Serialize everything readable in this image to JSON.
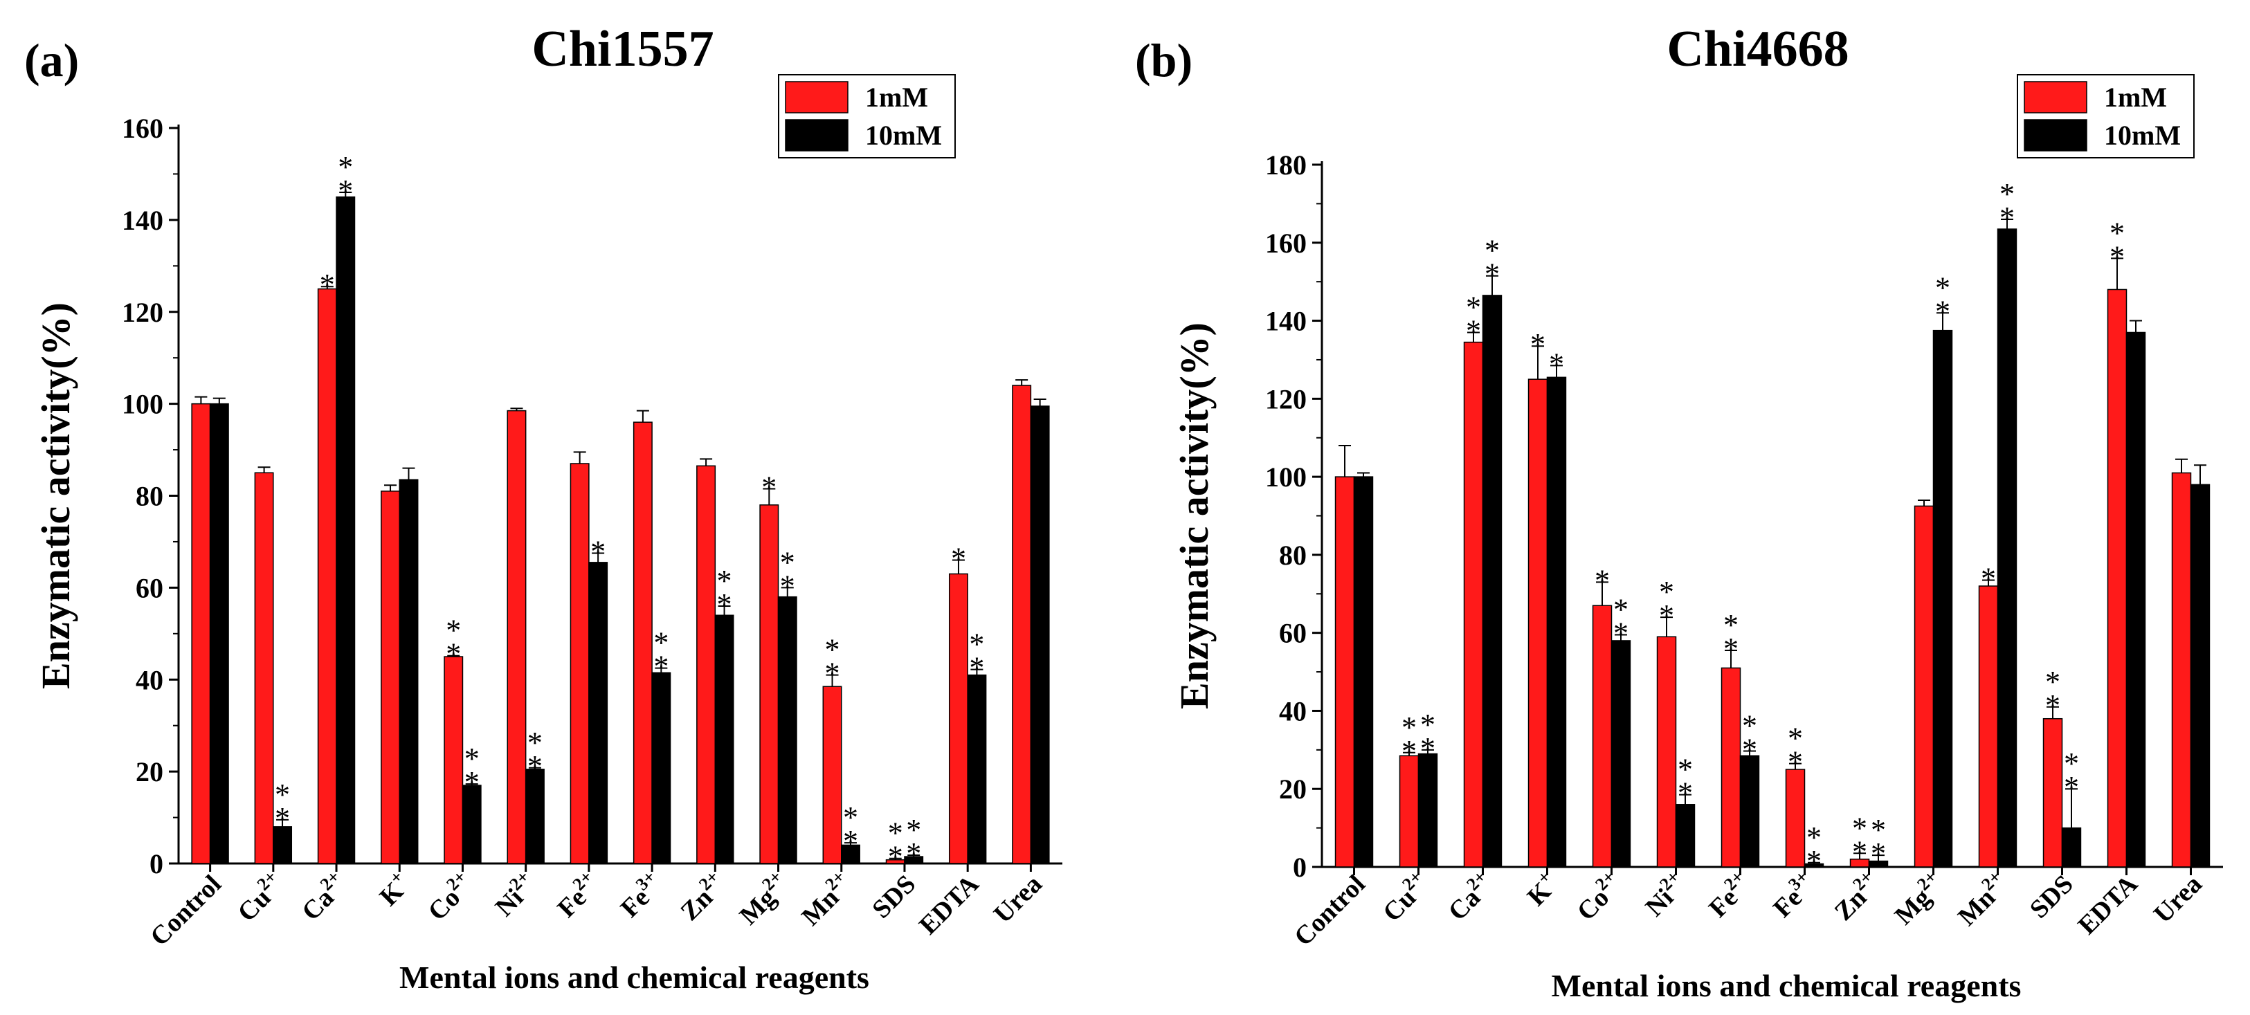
{
  "colors": {
    "c1mM": "#ff1a1a",
    "c10mM": "#000000"
  },
  "chart_data": [
    {
      "type": "bar",
      "panel_label": "(a)",
      "title": "Chi1557",
      "xlabel": "Mental ions and chemical reagents",
      "ylabel": "Enzymatic activity(%)",
      "ylim": [
        0,
        160
      ],
      "yticks": [
        "0",
        "20",
        "40",
        "60",
        "80",
        "100",
        "120",
        "140",
        "160"
      ],
      "legend_position": "top-right",
      "categories": [
        {
          "base": "Control",
          "sup": ""
        },
        {
          "base": "Cu",
          "sup": "2+"
        },
        {
          "base": "Ca",
          "sup": "2+"
        },
        {
          "base": "K",
          "sup": "+"
        },
        {
          "base": "Co",
          "sup": "2+"
        },
        {
          "base": "Ni",
          "sup": "2+"
        },
        {
          "base": "Fe",
          "sup": "2+"
        },
        {
          "base": "Fe",
          "sup": "3+"
        },
        {
          "base": "Zn",
          "sup": "2+"
        },
        {
          "base": "Mg",
          "sup": "2+"
        },
        {
          "base": "Mn",
          "sup": "2+"
        },
        {
          "base": "SDS",
          "sup": ""
        },
        {
          "base": "EDTA",
          "sup": ""
        },
        {
          "base": "Urea",
          "sup": ""
        }
      ],
      "series": [
        {
          "name": "1mM",
          "values": [
            100,
            85,
            125,
            81,
            45,
            98.5,
            87,
            96,
            86.5,
            78,
            38.5,
            0.8,
            63,
            104
          ],
          "errors": [
            1.5,
            1.2,
            0.5,
            1.3,
            0.2,
            0.5,
            2.5,
            2.5,
            1.5,
            3.5,
            2.5,
            0.3,
            3,
            1.2
          ],
          "sig": [
            "",
            "",
            "*",
            "",
            "**",
            "",
            "",
            "",
            "",
            "*",
            "**",
            "**",
            "*",
            ""
          ]
        },
        {
          "name": "10mM",
          "values": [
            100,
            8,
            145,
            83.5,
            17,
            20.5,
            65.5,
            41.5,
            54,
            58,
            4,
            1.5,
            41,
            99.5
          ],
          "errors": [
            1.2,
            1.5,
            1.0,
            2.5,
            0.3,
            0.3,
            2.0,
            1.0,
            2.0,
            2.0,
            0.5,
            0.3,
            1.2,
            1.5
          ],
          "sig": [
            "",
            "**",
            "**",
            "",
            "**",
            "**",
            "*",
            "**",
            "**",
            "**",
            "**",
            "**",
            "**",
            ""
          ]
        }
      ]
    },
    {
      "type": "bar",
      "panel_label": "(b)",
      "title": "Chi4668",
      "xlabel": "Mental ions and chemical reagents",
      "ylabel": "Enzymatic activity(%)",
      "ylim": [
        0,
        180
      ],
      "yticks": [
        "0",
        "20",
        "40",
        "60",
        "80",
        "100",
        "120",
        "140",
        "160",
        "180"
      ],
      "legend_position": "top-right",
      "categories": [
        {
          "base": "Control",
          "sup": ""
        },
        {
          "base": "Cu",
          "sup": "2+"
        },
        {
          "base": "Ca",
          "sup": "2+"
        },
        {
          "base": "K",
          "sup": "+"
        },
        {
          "base": "Co",
          "sup": "2+"
        },
        {
          "base": "Ni",
          "sup": "2+"
        },
        {
          "base": "Fe",
          "sup": "2+"
        },
        {
          "base": "Fe",
          "sup": "3+"
        },
        {
          "base": "Zn",
          "sup": "2+"
        },
        {
          "base": "Mg",
          "sup": "2+"
        },
        {
          "base": "Mn",
          "sup": "2+"
        },
        {
          "base": "SDS",
          "sup": ""
        },
        {
          "base": "EDTA",
          "sup": ""
        },
        {
          "base": "Urea",
          "sup": ""
        }
      ],
      "series": [
        {
          "name": "1mM",
          "values": [
            100,
            28.5,
            134.5,
            125,
            67,
            59,
            51,
            25,
            2,
            92.5,
            72,
            38,
            148,
            101
          ],
          "errors": [
            8,
            0.8,
            2.5,
            8.5,
            6,
            5,
            4.5,
            1.5,
            1.5,
            1.5,
            1.5,
            3,
            8,
            3.5
          ],
          "sig": [
            "",
            "**",
            "**",
            "*",
            "*",
            "**",
            "**",
            "**",
            "**",
            "",
            "*",
            "**",
            "**",
            ""
          ]
        },
        {
          "name": "10mM",
          "values": [
            100,
            29,
            146.5,
            125.5,
            58,
            16,
            28.5,
            0.8,
            1.5,
            137.5,
            163.5,
            10,
            137,
            98
          ],
          "errors": [
            1,
            1,
            5,
            3,
            1.5,
            2.5,
            1.2,
            0.3,
            1.5,
            4.5,
            2.5,
            10,
            3,
            5
          ],
          "sig": [
            "",
            "**",
            "**",
            "*",
            "**",
            "**",
            "**",
            "**",
            "**",
            "**",
            "**",
            "**",
            "",
            ""
          ]
        }
      ]
    }
  ]
}
